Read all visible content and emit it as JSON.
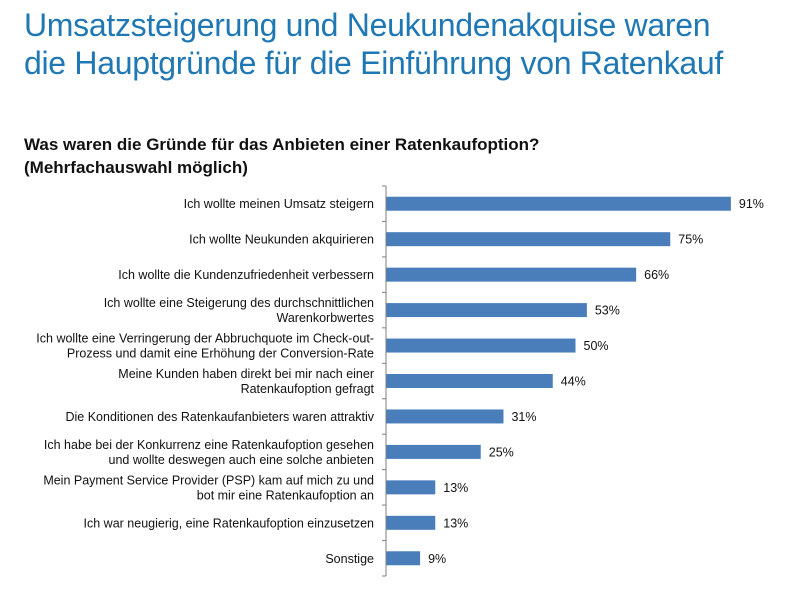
{
  "header": {
    "title_line1": "Umsatzsteigerung und Neukundenakquise waren",
    "title_line2": "die Hauptgründe für die Einführung von Ratenkauf"
  },
  "question": {
    "line1": "Was waren die Gründe für das Anbieten einer Ratenkaufoption?",
    "line2": "(Mehrfachauswahl möglich)"
  },
  "colors": {
    "bar": "#4a7ebb",
    "title": "#1f78b4"
  },
  "chart_data": {
    "type": "bar",
    "orientation": "horizontal",
    "title": "",
    "xlabel": "",
    "ylabel": "",
    "xlim": [
      0,
      100
    ],
    "unit": "%",
    "grid": false,
    "legend": "none",
    "categories": [
      [
        "Ich wollte meinen Umsatz steigern"
      ],
      [
        "Ich wollte Neukunden akquirieren"
      ],
      [
        "Ich wollte die Kundenzufriedenheit verbessern"
      ],
      [
        "Ich wollte eine Steigerung des durchschnittlichen",
        "Warenkorbwertes"
      ],
      [
        "Ich wollte eine Verringerung der Abbruchquote im Check-out-",
        "Prozess und damit eine Erhöhung der Conversion-Rate"
      ],
      [
        "Meine Kunden haben direkt bei mir nach einer",
        "Ratenkaufoption gefragt"
      ],
      [
        "Die Konditionen des Ratenkaufanbieters waren attraktiv"
      ],
      [
        "Ich habe bei der Konkurrenz eine Ratenkaufoption gesehen",
        "und wollte deswegen auch eine solche anbieten"
      ],
      [
        "Mein Payment Service Provider (PSP) kam auf mich zu und",
        "bot mir eine Ratenkaufoption an"
      ],
      [
        "Ich war neugierig, eine Ratenkaufoption einzusetzen"
      ],
      [
        "Sonstige"
      ]
    ],
    "values": [
      91,
      75,
      66,
      53,
      50,
      44,
      31,
      25,
      13,
      13,
      9
    ],
    "value_labels": [
      "91%",
      "75%",
      "66%",
      "53%",
      "50%",
      "44%",
      "31%",
      "25%",
      "13%",
      "13%",
      "9%"
    ]
  }
}
